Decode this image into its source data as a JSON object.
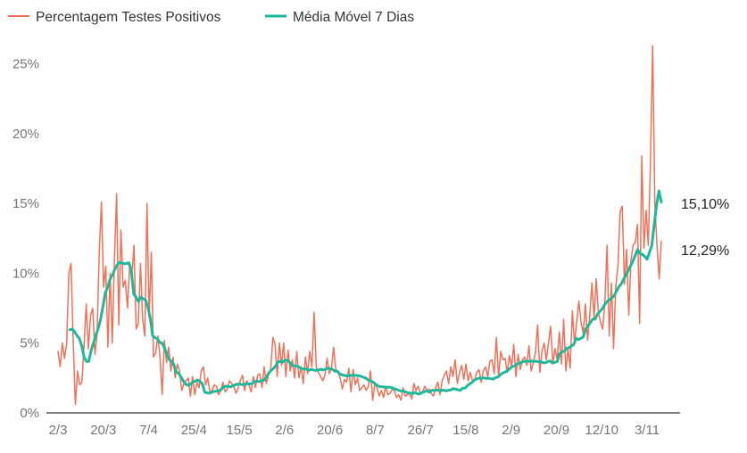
{
  "chart_data": {
    "type": "line",
    "title": "",
    "xlabel": "",
    "ylabel": "",
    "ylim": [
      0,
      26.5
    ],
    "grid": false,
    "legend_position": "top-left",
    "x_tick_labels": [
      "2/3",
      "20/3",
      "7/4",
      "25/4",
      "15/5",
      "2/6",
      "20/6",
      "8/7",
      "26/7",
      "15/8",
      "2/9",
      "20/9",
      "12/10",
      "3/11"
    ],
    "y_tick_labels": [
      "0%",
      "5%",
      "10%",
      "15%",
      "20%",
      "25%"
    ],
    "y_tick_values": [
      0,
      5,
      10,
      15,
      20,
      25
    ],
    "end_labels": [
      "15,10%",
      "12,29%"
    ],
    "series": [
      {
        "name": "Percentagem Testes Positivos",
        "color": "#f07058",
        "values": [
          4.4,
          3.3,
          5.0,
          3.9,
          5.0,
          10.0,
          10.7,
          5.1,
          0.6,
          3.0,
          2.0,
          2.2,
          4.8,
          7.8,
          4.6,
          7.0,
          7.5,
          4.2,
          5.6,
          11.5,
          15.1,
          9.0,
          10.5,
          4.7,
          10.0,
          5.0,
          11.0,
          15.7,
          6.3,
          13.1,
          9.0,
          9.5,
          7.5,
          10.5,
          9.8,
          12.0,
          6.0,
          6.4,
          10.7,
          6.7,
          5.5,
          15.0,
          6.8,
          11.5,
          4.0,
          4.3,
          5.5,
          4.0,
          1.3,
          5.2,
          3.6,
          4.7,
          3.0,
          4.0,
          2.5,
          3.5,
          3.0,
          1.6,
          2.1,
          2.3,
          2.5,
          1.2,
          2.6,
          1.3,
          2.2,
          1.8,
          3.0,
          3.3,
          2.0,
          2.5,
          1.5,
          1.6,
          2.0,
          1.9,
          1.3,
          1.6,
          2.2,
          1.5,
          1.7,
          2.3,
          2.1,
          1.9,
          1.4,
          1.8,
          2.3,
          2.7,
          1.6,
          2.3,
          2.0,
          1.5,
          2.6,
          1.8,
          2.7,
          2.8,
          1.8,
          3.3,
          2.1,
          2.7,
          3.1,
          5.4,
          4.9,
          2.6,
          5.0,
          3.4,
          5.0,
          2.6,
          4.5,
          3.0,
          3.8,
          2.5,
          4.4,
          2.5,
          3.3,
          2.1,
          4.0,
          2.8,
          4.4,
          3.3,
          7.2,
          3.3,
          2.9,
          2.6,
          2.3,
          2.7,
          3.9,
          2.8,
          3.2,
          4.7,
          3.1,
          2.9,
          2.5,
          1.7,
          2.4,
          2.2,
          3.2,
          1.5,
          3.1,
          2.0,
          2.5,
          1.6,
          1.8,
          2.0,
          1.6,
          1.9,
          3.0,
          0.9,
          2.1,
          1.8,
          1.2,
          1.6,
          1.1,
          1.9,
          1.3,
          1.4,
          1.7,
          1.6,
          1.1,
          1.3,
          0.9,
          1.8,
          1.2,
          1.3,
          1.4,
          1.0,
          2.1,
          1.6,
          1.9,
          1.4,
          1.5,
          1.9,
          1.6,
          1.7,
          1.4,
          1.2,
          1.8,
          2.2,
          1.3,
          2.3,
          2.7,
          3.0,
          2.1,
          3.3,
          2.6,
          3.8,
          2.1,
          2.9,
          3.4,
          2.4,
          3.5,
          2.3,
          2.9,
          2.3,
          2.4,
          2.9,
          3.1,
          2.2,
          3.0,
          3.3,
          2.6,
          3.7,
          3.8,
          2.8,
          5.4,
          2.6,
          4.4,
          3.8,
          3.9,
          2.9,
          4.1,
          3.3,
          4.9,
          2.6,
          4.2,
          3.1,
          3.8,
          4.0,
          3.4,
          4.8,
          3.0,
          3.6,
          4.3,
          6.3,
          2.9,
          4.4,
          5.0,
          3.8,
          5.0,
          6.2,
          3.5,
          4.6,
          3.8,
          5.8,
          3.5,
          6.7,
          3.0,
          4.6,
          3.2,
          7.3,
          4.9,
          6.5,
          8.0,
          6.5,
          5.7,
          7.8,
          5.2,
          6.9,
          9.3,
          6.8,
          9.6,
          7.2,
          6.5,
          6.0,
          8.0,
          12.0,
          5.5,
          9.3,
          4.6,
          9.0,
          10.5,
          14.4,
          14.8,
          9.2,
          11.7,
          7.0,
          10.9,
          12.0,
          12.2,
          13.5,
          6.4,
          18.4,
          11.8,
          14.5,
          12.0,
          18.0,
          26.3,
          15.0,
          12.0,
          9.6,
          12.3
        ],
        "last_value": 12.29
      },
      {
        "name": "Média Móvel 7 Dias",
        "color": "#1db99a",
        "values": [
          null,
          null,
          null,
          null,
          null,
          5.95,
          6.01,
          5.8,
          5.54,
          5.33,
          4.83,
          4.0,
          3.68,
          3.69,
          4.47,
          5.01,
          5.58,
          6.04,
          6.7,
          7.63,
          8.6,
          9.01,
          9.58,
          9.87,
          10.27,
          10.6,
          10.79,
          10.74,
          10.68,
          10.71,
          10.74,
          10.12,
          8.52,
          8.29,
          7.97,
          8.28,
          8.18,
          8.07,
          7.56,
          6.77,
          5.52,
          5.39,
          5.3,
          5.05,
          4.99,
          4.66,
          4.21,
          3.82,
          3.68,
          3.42,
          2.92,
          2.84,
          2.55,
          2.28,
          2.05,
          1.97,
          2.06,
          2.22,
          2.27,
          2.36,
          2.24,
          2.09,
          1.49,
          1.43,
          1.4,
          1.48,
          1.54,
          1.54,
          1.59,
          1.68,
          1.87,
          1.92,
          1.88,
          1.87,
          1.94,
          2.02,
          2.06,
          2.05,
          2.02,
          2.05,
          2.09,
          2.06,
          2.11,
          2.22,
          2.29,
          2.23,
          2.31,
          2.32,
          2.54,
          2.83,
          3.04,
          3.17,
          3.37,
          3.67,
          3.67,
          3.64,
          3.79,
          3.76,
          3.61,
          3.39,
          3.38,
          3.34,
          3.28,
          3.14,
          3.15,
          3.13,
          3.04,
          3.12,
          3.07,
          3.04,
          3.07,
          3.12,
          3.08,
          3.11,
          3.21,
          3.16,
          3.12,
          2.98,
          2.99,
          2.81,
          2.71,
          2.69,
          2.65,
          2.66,
          2.69,
          2.69,
          2.68,
          2.66,
          2.62,
          2.55,
          2.51,
          2.36,
          2.29,
          2.22,
          2.09,
          1.96,
          1.88,
          1.87,
          1.85,
          1.83,
          1.84,
          1.81,
          1.74,
          1.68,
          1.62,
          1.56,
          1.56,
          1.5,
          1.43,
          1.42,
          1.38,
          1.46,
          1.35,
          1.37,
          1.47,
          1.53,
          1.57,
          1.48,
          1.62,
          1.6,
          1.64,
          1.61,
          1.59,
          1.63,
          1.57,
          1.62,
          1.64,
          1.74,
          1.7,
          1.66,
          1.61,
          1.77,
          1.77,
          1.94,
          2.08,
          2.18,
          2.35,
          2.44,
          2.48,
          2.47,
          2.51,
          2.47,
          2.48,
          2.44,
          2.43,
          2.53,
          2.58,
          2.74,
          2.86,
          2.93,
          3.02,
          3.18,
          3.31,
          3.36,
          3.5,
          3.55,
          3.63,
          3.69,
          3.71,
          3.69,
          3.71,
          3.69,
          3.7,
          3.66,
          3.67,
          3.59,
          3.58,
          3.67,
          3.72,
          3.57,
          3.62,
          3.67,
          4.23,
          4.36,
          4.42,
          4.63,
          4.67,
          4.79,
          4.9,
          5.34,
          5.25,
          5.34,
          5.44,
          5.98,
          6.24,
          6.46,
          6.71,
          6.71,
          7.06,
          7.25,
          7.45,
          7.74,
          7.95,
          8.11,
          8.21,
          8.38,
          8.71,
          9.01,
          9.21,
          9.55,
          9.85,
          10.19,
          10.53,
          10.86,
          11.3,
          11.7,
          11.4,
          11.35,
          11.2,
          11.0,
          11.5,
          12.0,
          13.5,
          14.9,
          15.9,
          15.1
        ],
        "last_value": 15.1
      }
    ]
  }
}
